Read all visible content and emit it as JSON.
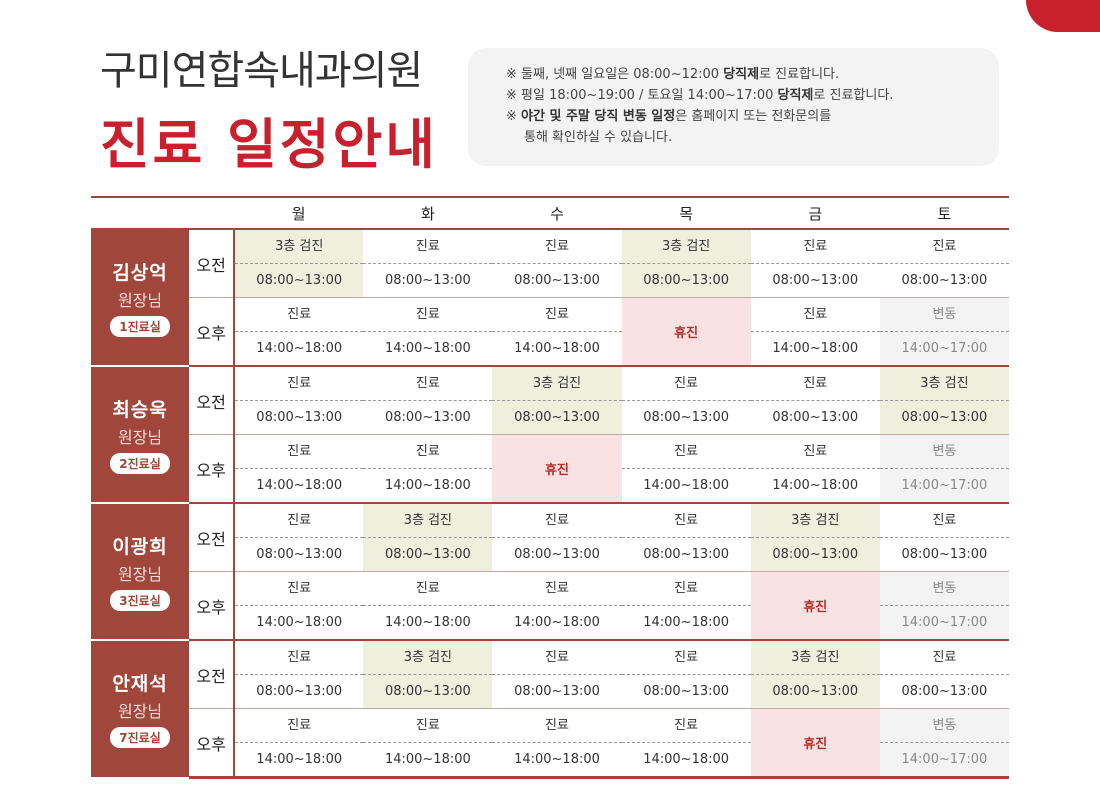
{
  "title_sub": "구미연합속내과의원",
  "title_main": "진료 일정안내",
  "notices": [
    {
      "mark": "※ ",
      "pre": "둘째, 넷째 일요일은 08:00~12:00 ",
      "bold": "당직제",
      "post": "로 진료합니다."
    },
    {
      "mark": "※ ",
      "pre": "평일 18:00~19:00 / 토요일 14:00~17:00 ",
      "bold": "당직제",
      "post": "로 진료합니다."
    },
    {
      "mark": "※ ",
      "pre": "",
      "bold": "야간 및 주말 당직 변동 일정",
      "post": "은 홈페이지 또는 전화문의를"
    },
    {
      "mark": "",
      "pre": "통해 확인하실 수 있습니다.",
      "bold": "",
      "post": ""
    }
  ],
  "days": [
    "월",
    "화",
    "수",
    "목",
    "금",
    "토"
  ],
  "doctors": [
    {
      "name": "김상억",
      "title": "원장님",
      "room": "1진료실",
      "sessions": [
        {
          "label": "오전",
          "cells": [
            {
              "type": "exam",
              "label": "3층 검진",
              "time": "08:00~13:00"
            },
            {
              "type": "normal",
              "label": "진료",
              "time": "08:00~13:00"
            },
            {
              "type": "normal",
              "label": "진료",
              "time": "08:00~13:00"
            },
            {
              "type": "exam",
              "label": "3층 검진",
              "time": "08:00~13:00"
            },
            {
              "type": "normal",
              "label": "진료",
              "time": "08:00~13:00"
            },
            {
              "type": "normal",
              "label": "진료",
              "time": "08:00~13:00"
            }
          ]
        },
        {
          "label": "오후",
          "cells": [
            {
              "type": "normal",
              "label": "진료",
              "time": "14:00~18:00"
            },
            {
              "type": "normal",
              "label": "진료",
              "time": "14:00~18:00"
            },
            {
              "type": "normal",
              "label": "진료",
              "time": "14:00~18:00"
            },
            {
              "type": "off",
              "label": "휴진",
              "time": ""
            },
            {
              "type": "normal",
              "label": "진료",
              "time": "14:00~18:00"
            },
            {
              "type": "var",
              "label": "변동",
              "time": "14:00~17:00"
            }
          ]
        }
      ]
    },
    {
      "name": "최승욱",
      "title": "원장님",
      "room": "2진료실",
      "sessions": [
        {
          "label": "오전",
          "cells": [
            {
              "type": "normal",
              "label": "진료",
              "time": "08:00~13:00"
            },
            {
              "type": "normal",
              "label": "진료",
              "time": "08:00~13:00"
            },
            {
              "type": "exam",
              "label": "3층 검진",
              "time": "08:00~13:00"
            },
            {
              "type": "normal",
              "label": "진료",
              "time": "08:00~13:00"
            },
            {
              "type": "normal",
              "label": "진료",
              "time": "08:00~13:00"
            },
            {
              "type": "exam",
              "label": "3층 검진",
              "time": "08:00~13:00"
            }
          ]
        },
        {
          "label": "오후",
          "cells": [
            {
              "type": "normal",
              "label": "진료",
              "time": "14:00~18:00"
            },
            {
              "type": "normal",
              "label": "진료",
              "time": "14:00~18:00"
            },
            {
              "type": "off",
              "label": "휴진",
              "time": ""
            },
            {
              "type": "normal",
              "label": "진료",
              "time": "14:00~18:00"
            },
            {
              "type": "normal",
              "label": "진료",
              "time": "14:00~18:00"
            },
            {
              "type": "var",
              "label": "변동",
              "time": "14:00~17:00"
            }
          ]
        }
      ]
    },
    {
      "name": "이광희",
      "title": "원장님",
      "room": "3진료실",
      "sessions": [
        {
          "label": "오전",
          "cells": [
            {
              "type": "normal",
              "label": "진료",
              "time": "08:00~13:00"
            },
            {
              "type": "exam",
              "label": "3층 검진",
              "time": "08:00~13:00"
            },
            {
              "type": "normal",
              "label": "진료",
              "time": "08:00~13:00"
            },
            {
              "type": "normal",
              "label": "진료",
              "time": "08:00~13:00"
            },
            {
              "type": "exam",
              "label": "3층 검진",
              "time": "08:00~13:00"
            },
            {
              "type": "normal",
              "label": "진료",
              "time": "08:00~13:00"
            }
          ]
        },
        {
          "label": "오후",
          "cells": [
            {
              "type": "normal",
              "label": "진료",
              "time": "14:00~18:00"
            },
            {
              "type": "normal",
              "label": "진료",
              "time": "14:00~18:00"
            },
            {
              "type": "normal",
              "label": "진료",
              "time": "14:00~18:00"
            },
            {
              "type": "normal",
              "label": "진료",
              "time": "14:00~18:00"
            },
            {
              "type": "off",
              "label": "휴진",
              "time": ""
            },
            {
              "type": "var",
              "label": "변동",
              "time": "14:00~17:00"
            }
          ]
        }
      ]
    },
    {
      "name": "안재석",
      "title": "원장님",
      "room": "7진료실",
      "sessions": [
        {
          "label": "오전",
          "cells": [
            {
              "type": "normal",
              "label": "진료",
              "time": "08:00~13:00"
            },
            {
              "type": "exam",
              "label": "3층 검진",
              "time": "08:00~13:00"
            },
            {
              "type": "normal",
              "label": "진료",
              "time": "08:00~13:00"
            },
            {
              "type": "normal",
              "label": "진료",
              "time": "08:00~13:00"
            },
            {
              "type": "exam",
              "label": "3층 검진",
              "time": "08:00~13:00"
            },
            {
              "type": "normal",
              "label": "진료",
              "time": "08:00~13:00"
            }
          ]
        },
        {
          "label": "오후",
          "cells": [
            {
              "type": "normal",
              "label": "진료",
              "time": "14:00~18:00"
            },
            {
              "type": "normal",
              "label": "진료",
              "time": "14:00~18:00"
            },
            {
              "type": "normal",
              "label": "진료",
              "time": "14:00~18:00"
            },
            {
              "type": "normal",
              "label": "진료",
              "time": "14:00~18:00"
            },
            {
              "type": "off",
              "label": "휴진",
              "time": ""
            },
            {
              "type": "var",
              "label": "변동",
              "time": "14:00~17:00"
            }
          ]
        }
      ]
    }
  ],
  "colors": {
    "accent_red": "#c8202c",
    "doctor_band": "#a0463a",
    "exam_bg": "#eef0dd",
    "off_bg": "#fae2e2",
    "variable_bg": "#f3f3f3"
  }
}
